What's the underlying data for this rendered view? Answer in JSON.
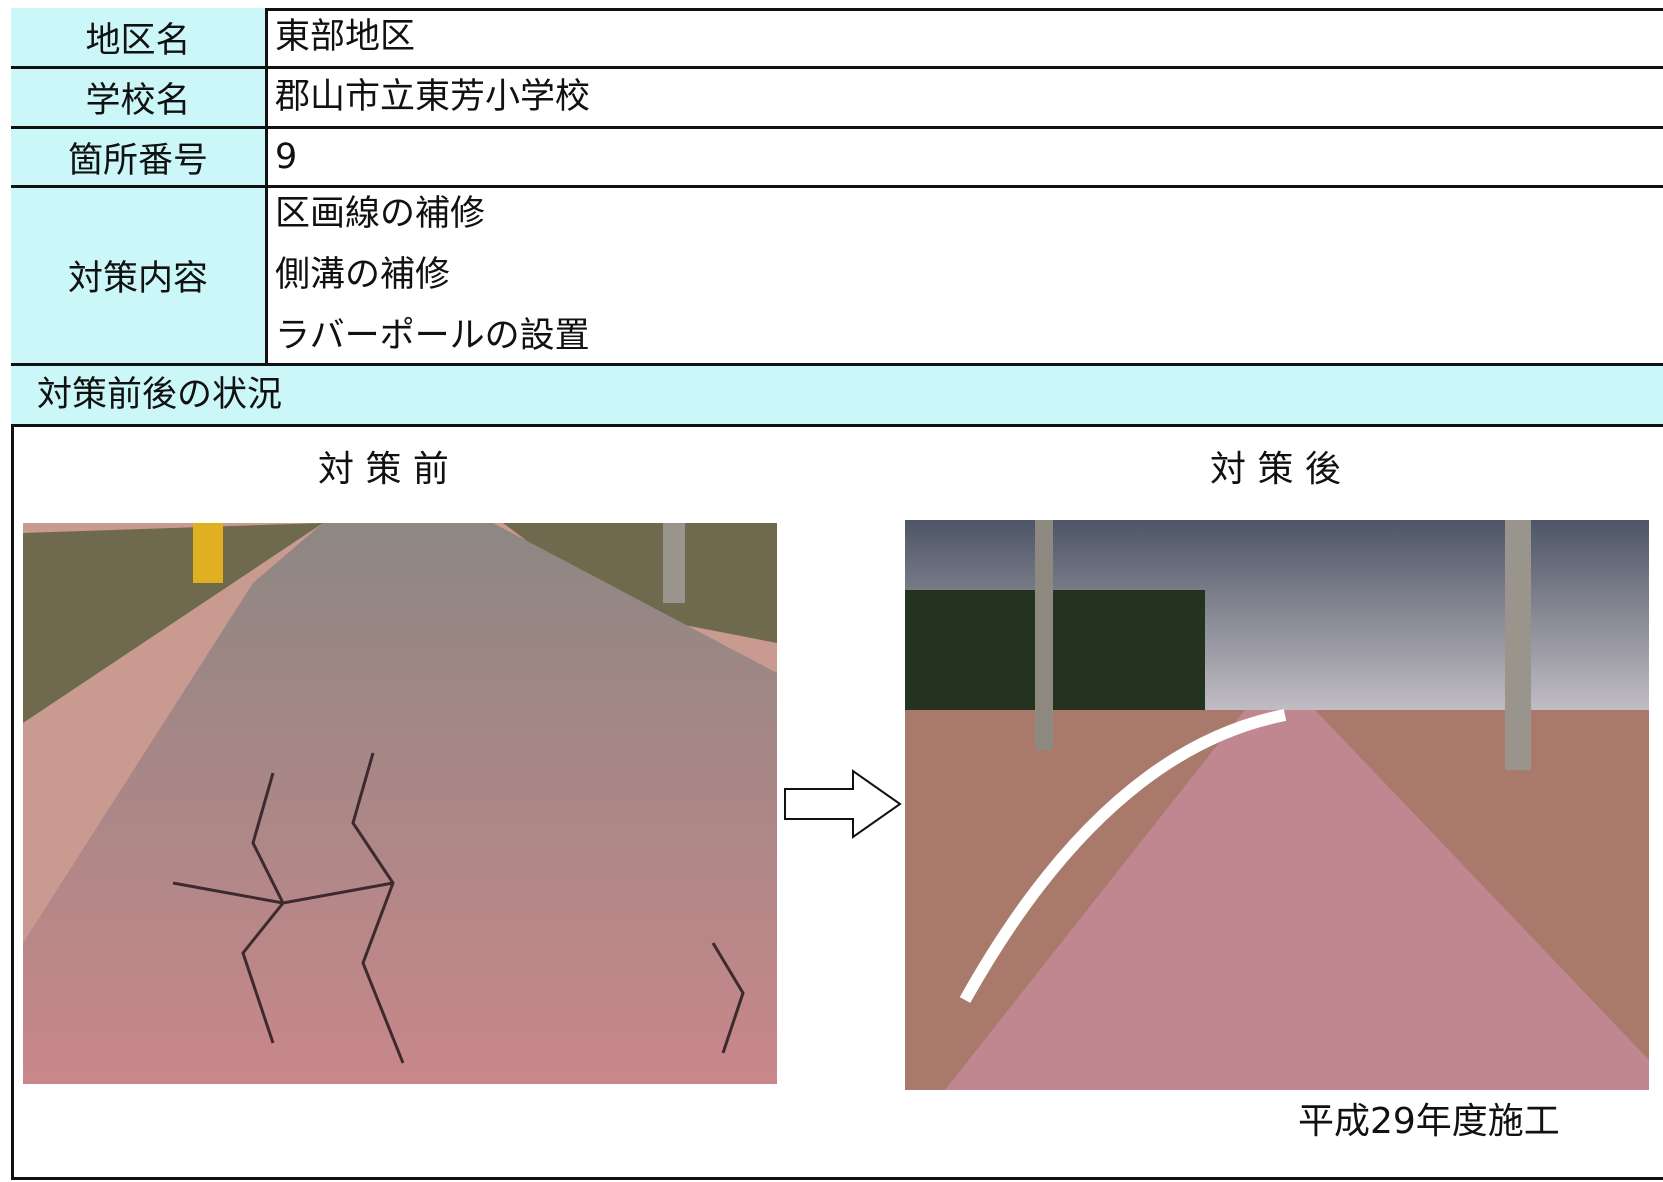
{
  "table": {
    "rows": [
      {
        "label": "地区名",
        "value": [
          "東部地区"
        ]
      },
      {
        "label": "学校名",
        "value": [
          "郡山市立東芳小学校"
        ]
      },
      {
        "label": "箇所番号",
        "value": [
          "9"
        ]
      },
      {
        "label": "対策内容",
        "value": [
          "区画線の補修",
          "側溝の補修",
          "ラバーポールの設置"
        ]
      }
    ]
  },
  "section": {
    "title": "対策前後の状況",
    "before_label": "対 策 前",
    "after_label": "対 策 後",
    "caption": "平成29年度施工"
  }
}
